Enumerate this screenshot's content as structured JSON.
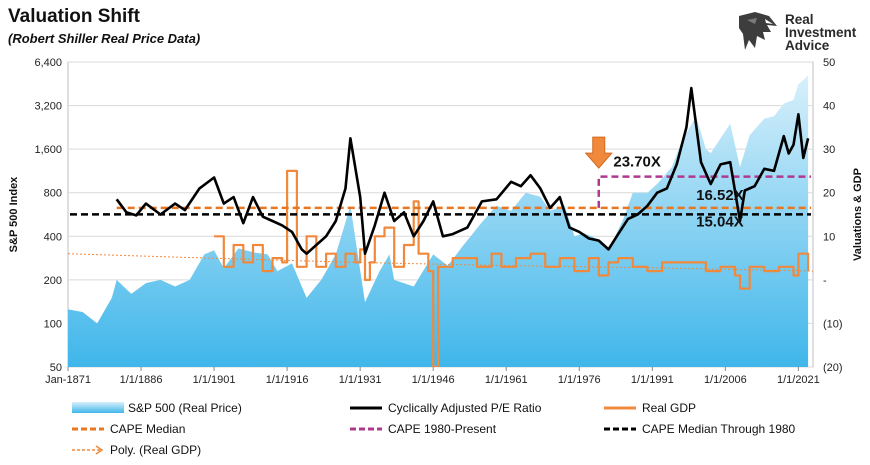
{
  "header": {
    "title": "Valuation Shift",
    "subtitle": "(Robert Shiller Real Price Data)"
  },
  "brand": {
    "line1": "Real",
    "line2": "Investment",
    "line3": "Advice",
    "icon": "eagle-head-logo-icon"
  },
  "colors": {
    "sp500_fill_top": "#d8f0fb",
    "sp500_fill_bottom": "#3fb6ea",
    "cape": "#000000",
    "real_gdp": "#f0893c",
    "cape_median": "#e87722",
    "cape_1980_present": "#b0388f",
    "cape_median_1980": "#000000",
    "arrow": "#f0893c",
    "grid": "#d9d9d9"
  },
  "chart_data": {
    "type": "line",
    "title": "Valuation Shift",
    "subtitle": "(Robert Shiller Real Price Data)",
    "x_range": [
      1871,
      2024
    ],
    "x_tick_values": [
      1871,
      1886,
      1901,
      1916,
      1931,
      1946,
      1961,
      1976,
      1991,
      2006,
      2021
    ],
    "x_tick_labels": [
      "Jan-1871",
      "1/1/1886",
      "1/1/1901",
      "1/1/1916",
      "1/1/1931",
      "1/1/1946",
      "1/1/1961",
      "1/1/1976",
      "1/1/1991",
      "1/1/2006",
      "1/1/2021"
    ],
    "y_left": {
      "label": "S&P 500 Index",
      "scale": "log",
      "range": [
        50,
        6400
      ],
      "tick_values": [
        50,
        100,
        200,
        400,
        800,
        1600,
        3200,
        6400
      ],
      "tick_labels": [
        "50",
        "100",
        "200",
        "400",
        "800",
        "1,600",
        "3,200",
        "6,400"
      ]
    },
    "y_right": {
      "label": "Valuations & GDP",
      "range": [
        -20,
        50
      ],
      "tick_values": [
        -20,
        -10,
        0,
        10,
        20,
        30,
        40,
        50
      ],
      "tick_labels": [
        "(20)",
        "(10)",
        "-",
        "10",
        "20",
        "30",
        "40",
        "50"
      ]
    },
    "series": [
      {
        "name": "S&P 500 (Real Price)",
        "axis": "left",
        "style": "area",
        "x": [
          1871,
          1874,
          1877,
          1880,
          1881,
          1884,
          1887,
          1890,
          1893,
          1896,
          1899,
          1901,
          1903,
          1906,
          1909,
          1912,
          1914,
          1917,
          1920,
          1923,
          1926,
          1929,
          1932,
          1935,
          1937,
          1938,
          1942,
          1946,
          1949,
          1952,
          1956,
          1959,
          1962,
          1965,
          1968,
          1970,
          1973,
          1975,
          1977,
          1980,
          1982,
          1985,
          1987,
          1990,
          1992,
          1995,
          1997,
          2000,
          2002,
          2003,
          2007,
          2009,
          2011,
          2014,
          2016,
          2018,
          2020,
          2021,
          2022,
          2023
        ],
        "values": [
          125,
          120,
          100,
          150,
          200,
          160,
          190,
          200,
          180,
          200,
          300,
          320,
          240,
          330,
          310,
          300,
          230,
          260,
          150,
          200,
          300,
          650,
          140,
          230,
          300,
          200,
          180,
          300,
          250,
          340,
          500,
          650,
          600,
          800,
          750,
          600,
          650,
          400,
          420,
          380,
          320,
          520,
          800,
          800,
          920,
          1200,
          1800,
          2700,
          1600,
          1500,
          2400,
          1200,
          2000,
          2600,
          2700,
          3300,
          3500,
          4500,
          4800,
          5200
        ]
      },
      {
        "name": "Cyclically Adjusted P/E Ratio",
        "axis": "right",
        "style": "line",
        "x": [
          1881,
          1883,
          1885,
          1887,
          1890,
          1893,
          1895,
          1898,
          1901,
          1903,
          1905,
          1907,
          1909,
          1911,
          1913,
          1915,
          1917,
          1919,
          1920,
          1922,
          1924,
          1926,
          1928,
          1929,
          1931,
          1932,
          1934,
          1936,
          1938,
          1940,
          1942,
          1944,
          1946,
          1948,
          1950,
          1953,
          1956,
          1959,
          1962,
          1964,
          1966,
          1968,
          1970,
          1972,
          1974,
          1976,
          1978,
          1980,
          1982,
          1984,
          1986,
          1988,
          1990,
          1992,
          1994,
          1996,
          1998,
          1999,
          2001,
          2003,
          2005,
          2007,
          2009,
          2010,
          2012,
          2014,
          2016,
          2018,
          2019,
          2020,
          2021,
          2022,
          2023
        ],
        "values": [
          18.5,
          15.5,
          14.8,
          17.5,
          15.0,
          17.5,
          16.0,
          21.0,
          23.5,
          17.5,
          19.0,
          13.0,
          19.0,
          14.5,
          13.5,
          12.5,
          11.0,
          7.0,
          6.0,
          8.0,
          10.0,
          13.5,
          21.0,
          32.5,
          19.0,
          6.0,
          12.5,
          20.0,
          13.5,
          15.5,
          10.0,
          13.5,
          18.0,
          10.0,
          10.5,
          12.0,
          18.0,
          18.5,
          22.5,
          21.5,
          24.0,
          21.0,
          16.5,
          19.0,
          12.0,
          11.0,
          9.5,
          9.0,
          7.0,
          10.5,
          14.0,
          15.0,
          17.0,
          20.0,
          21.0,
          26.5,
          35.0,
          44.0,
          27.0,
          22.0,
          26.5,
          27.0,
          13.5,
          20.5,
          21.5,
          25.5,
          25.0,
          33.0,
          29.0,
          31.0,
          38.0,
          28.0,
          32.5
        ]
      },
      {
        "name": "Real GDP",
        "axis": "right",
        "style": "line",
        "x": [
          1901,
          1903,
          1905,
          1907,
          1909,
          1911,
          1913,
          1915,
          1916,
          1918,
          1920,
          1922,
          1924,
          1926,
          1928,
          1930,
          1931,
          1932,
          1933,
          1934,
          1936,
          1938,
          1940,
          1942,
          1943,
          1945,
          1946,
          1947,
          1950,
          1953,
          1955,
          1958,
          1960,
          1963,
          1966,
          1969,
          1972,
          1975,
          1978,
          1980,
          1982,
          1984,
          1987,
          1990,
          1993,
          1996,
          2000,
          2002,
          2005,
          2008,
          2009,
          2011,
          2014,
          2017,
          2020,
          2021,
          2023
        ],
        "values": [
          10,
          3,
          8,
          4,
          8,
          2,
          5,
          4,
          25,
          3,
          10,
          3,
          6,
          3,
          6,
          4,
          7,
          0,
          4,
          10,
          12,
          3,
          8,
          18,
          6,
          2,
          -20,
          3,
          5,
          5,
          3,
          6,
          3,
          5,
          6,
          3,
          5,
          2,
          5,
          1,
          4,
          5,
          3,
          2,
          4,
          4,
          4,
          2,
          3,
          1,
          -2,
          3,
          2,
          3,
          1,
          6,
          2
        ]
      },
      {
        "name": "CAPE Median",
        "axis": "right",
        "style": "dashed-line",
        "value": 16.52
      },
      {
        "name": "CAPE 1980-Present",
        "axis": "right",
        "style": "dashed-line",
        "value": 23.7,
        "x_start": 1980
      },
      {
        "name": "CAPE Median Through 1980",
        "axis": "right",
        "style": "dashed-line",
        "value": 15.04
      },
      {
        "name": "Poly. (Real GDP)",
        "axis": "right",
        "style": "dotted-trend",
        "x": [
          1871,
          1900,
          1930,
          1960,
          1990,
          2024
        ],
        "values": [
          6.0,
          5.0,
          4.0,
          3.3,
          2.8,
          2.0
        ]
      }
    ],
    "annotations": [
      {
        "text": "23.70X",
        "x": 1983,
        "y_right": 26.0
      },
      {
        "text": "16.52X",
        "x": 2000,
        "y_right": 18.3
      },
      {
        "text": "15.04X",
        "x": 2000,
        "y_right": 12.3
      }
    ],
    "arrow_pointing_at": {
      "x": 1980,
      "y_right": 24.5
    },
    "legend": [
      {
        "label": "S&P 500 (Real Price)",
        "marker": "area"
      },
      {
        "label": "Cyclically Adjusted P/E Ratio",
        "marker": "line-black"
      },
      {
        "label": "Real GDP",
        "marker": "line-orange"
      },
      {
        "label": "CAPE Median",
        "marker": "dash-orange"
      },
      {
        "label": "CAPE 1980-Present",
        "marker": "dash-purple"
      },
      {
        "label": "CAPE Median Through 1980",
        "marker": "dash-black"
      },
      {
        "label": "Poly. (Real GDP)",
        "marker": "dotted-arrow-orange"
      }
    ],
    "legend_position": "bottom"
  }
}
